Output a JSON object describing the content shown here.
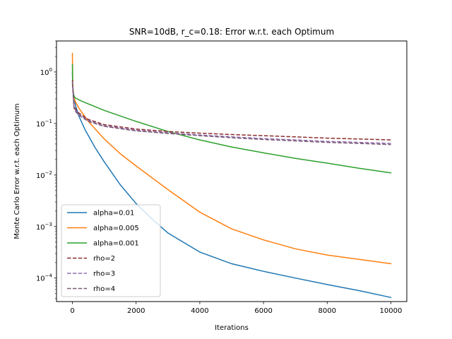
{
  "chart_data": {
    "type": "line",
    "title": "SNR=10dB, r_c=0.18: Error w.r.t. each Optimum",
    "xlabel": "Iterations",
    "ylabel": "Monte Carlo Error w.r.t. each Optimum",
    "yscale": "log",
    "xlim": [
      -500,
      10500
    ],
    "ylim": [
      3.5e-05,
      4.0
    ],
    "xticks": [
      0,
      2000,
      4000,
      6000,
      8000,
      10000
    ],
    "xtick_labels": [
      "0",
      "2000",
      "4000",
      "6000",
      "8000",
      "10000"
    ],
    "yticks": [
      0.0001,
      0.001,
      0.01,
      0.1,
      1
    ],
    "ytick_labels": [
      {
        "base": "10",
        "exp": "−4"
      },
      {
        "base": "10",
        "exp": "−3"
      },
      {
        "base": "10",
        "exp": "−2"
      },
      {
        "base": "10",
        "exp": "−1"
      },
      {
        "base": "10",
        "exp": "0"
      }
    ],
    "legend_position": "lower-left",
    "series": [
      {
        "name": "alpha=0.01",
        "color": "#1f77b4",
        "style": "solid",
        "x": [
          0,
          10,
          30,
          60,
          100,
          200,
          400,
          700,
          1000,
          1500,
          2000,
          2500,
          3000,
          4000,
          5000,
          6000,
          7000,
          8000,
          9000,
          10000
        ],
        "y": [
          1.0,
          0.55,
          0.4,
          0.3,
          0.22,
          0.14,
          0.075,
          0.035,
          0.018,
          0.0065,
          0.0028,
          0.0014,
          0.00075,
          0.00032,
          0.00019,
          0.000135,
          0.0001,
          7.5e-05,
          5.7e-05,
          4.2e-05
        ]
      },
      {
        "name": "alpha=0.005",
        "color": "#ff7f0e",
        "style": "solid",
        "x": [
          0,
          10,
          30,
          60,
          100,
          200,
          500,
          1000,
          1500,
          2000,
          3000,
          4000,
          5000,
          6000,
          7000,
          8000,
          9000,
          10000
        ],
        "y": [
          2.3,
          0.6,
          0.35,
          0.3,
          0.26,
          0.2,
          0.11,
          0.05,
          0.026,
          0.015,
          0.0052,
          0.0019,
          0.0009,
          0.00055,
          0.00037,
          0.00028,
          0.00023,
          0.00019
        ]
      },
      {
        "name": "alpha=0.001",
        "color": "#2ca02c",
        "style": "solid",
        "x": [
          0,
          10,
          30,
          60,
          100,
          300,
          1000,
          2000,
          3000,
          4000,
          5000,
          6000,
          7000,
          8000,
          9000,
          10000
        ],
        "y": [
          1.4,
          0.5,
          0.38,
          0.33,
          0.31,
          0.27,
          0.18,
          0.11,
          0.07,
          0.048,
          0.035,
          0.027,
          0.021,
          0.017,
          0.0135,
          0.011
        ]
      },
      {
        "name": "rho=2",
        "color": "#8c2d2d",
        "style": "dashed",
        "x": [
          0,
          50,
          100,
          200,
          500,
          1000,
          2000,
          3000,
          4000,
          5000,
          6000,
          7000,
          8000,
          9000,
          10000
        ],
        "y": [
          0.7,
          0.22,
          0.19,
          0.16,
          0.12,
          0.095,
          0.078,
          0.07,
          0.065,
          0.061,
          0.058,
          0.055,
          0.052,
          0.05,
          0.048
        ]
      },
      {
        "name": "rho=3",
        "color": "#8f6bb0",
        "style": "dashed",
        "x": [
          0,
          50,
          100,
          200,
          500,
          1000,
          2000,
          3000,
          4000,
          5000,
          6000,
          7000,
          8000,
          9000,
          10000
        ],
        "y": [
          0.65,
          0.21,
          0.18,
          0.15,
          0.115,
          0.09,
          0.074,
          0.066,
          0.06,
          0.055,
          0.051,
          0.048,
          0.045,
          0.043,
          0.041
        ]
      },
      {
        "name": "rho=4",
        "color": "#7a5a73",
        "style": "dashed",
        "x": [
          0,
          50,
          100,
          200,
          500,
          1000,
          2000,
          3000,
          4000,
          5000,
          6000,
          7000,
          8000,
          9000,
          10000
        ],
        "y": [
          0.6,
          0.2,
          0.17,
          0.145,
          0.11,
          0.088,
          0.072,
          0.064,
          0.058,
          0.053,
          0.049,
          0.046,
          0.043,
          0.041,
          0.039
        ]
      }
    ]
  }
}
